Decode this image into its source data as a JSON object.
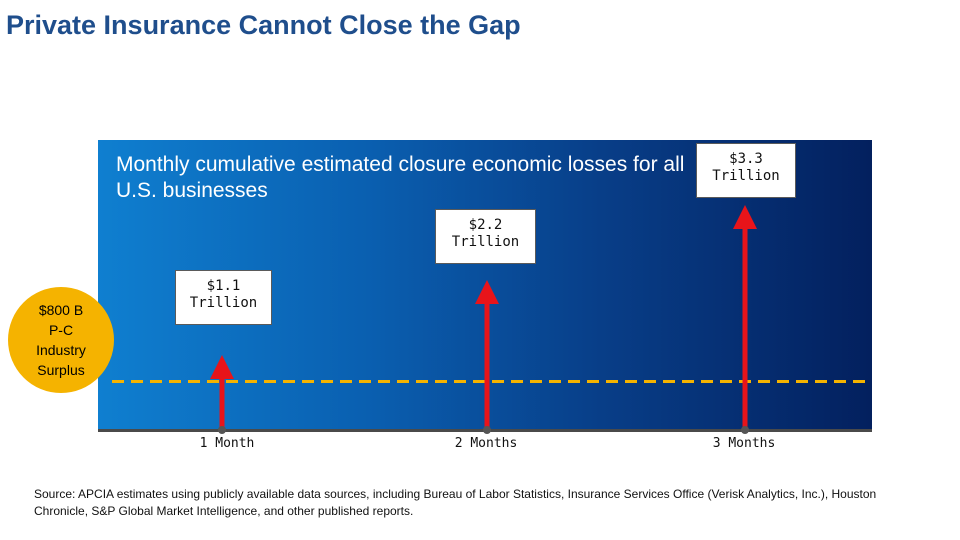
{
  "title": "Private Insurance Cannot Close the Gap",
  "chart_data": {
    "type": "bar",
    "title": "Monthly cumulative estimated closure economic losses for all U.S. businesses",
    "categories": [
      "1 Month",
      "2 Months",
      "3 Months"
    ],
    "values": [
      1.1,
      2.2,
      3.3
    ],
    "unit": "Trillion USD",
    "value_labels": [
      {
        "amount": "$1.1",
        "unit": "Trillion"
      },
      {
        "amount": "$2.2",
        "unit": "Trillion"
      },
      {
        "amount": "$3.3",
        "unit": "Trillion"
      }
    ],
    "reference_line": {
      "value": 0.8,
      "label": "$800 B\nP-C\nIndustry\nSurplus"
    },
    "ylim": [
      0,
      3.3
    ]
  },
  "source": "Source: APCIA estimates using publicly available data sources, including Bureau of Labor Statistics, Insurance Services Office (Verisk Analytics, Inc.), Houston Chronicle, S&P Global Market Intelligence, and other published reports.",
  "colors": {
    "arrow": "#e8141a",
    "reference_line": "#f5b300",
    "circle": "#f5b300",
    "title": "#1f4e8c"
  }
}
